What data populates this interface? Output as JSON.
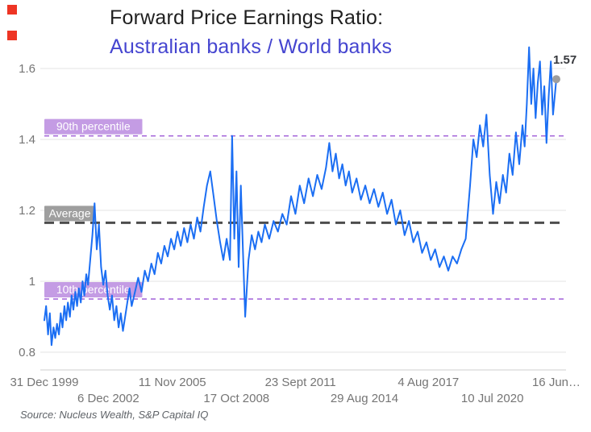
{
  "header": {
    "title": "Forward Price Earnings Ratio:",
    "subtitle": "Australian banks / World banks"
  },
  "source": "Source: Nucleus Wealth, S&P Capital IQ",
  "colors": {
    "line": "#1b6ef3",
    "subtitle": "#4545d0",
    "percentile_bg": "#c49ce4",
    "percentile_line": "#a160d8",
    "average_bg": "#9e9e9e",
    "average_line": "#4d4d4d",
    "marker": "#ee3524",
    "dot": "#9e9e9e",
    "grid": "#e3e3e3",
    "axis_text": "#757575"
  },
  "annotations": [
    {
      "name": "p90",
      "label": "90th percentile",
      "value": 1.41,
      "bg": "#c49ce4",
      "line_color": "#a160d8",
      "dash": "6,5",
      "line_width": 1.5
    },
    {
      "name": "average",
      "label": "Average",
      "value": 1.165,
      "bg": "#9e9e9e",
      "line_color": "#4d4d4d",
      "dash": "12,7",
      "line_width": 3
    },
    {
      "name": "p10",
      "label": "10th percentile",
      "value": 0.95,
      "bg": "#c49ce4",
      "line_color": "#a160d8",
      "dash": "6,5",
      "line_width": 1.5
    }
  ],
  "end_marker": {
    "x": 2023.45,
    "value": 1.57,
    "label": "1.57"
  },
  "chart_data": {
    "type": "line",
    "title": "Forward Price Earnings Ratio: Australian banks / World banks",
    "xlabel": "",
    "ylabel": "",
    "xlim": [
      2000,
      2023.45
    ],
    "ylim": [
      0.8,
      1.6
    ],
    "grid": "horizontal",
    "legend": "none",
    "y_ticks": [
      {
        "label": "0.8",
        "value": 0.8
      },
      {
        "label": "1",
        "value": 1.0
      },
      {
        "label": "1.2",
        "value": 1.2
      },
      {
        "label": "1.4",
        "value": 1.4
      },
      {
        "label": "1.6",
        "value": 1.6
      }
    ],
    "x_ticks": [
      {
        "label": "31 Dec 1999",
        "x": 2000.0,
        "row": 0
      },
      {
        "label": "6 Dec 2002",
        "x": 2002.93,
        "row": 1
      },
      {
        "label": "11 Nov 2005",
        "x": 2005.86,
        "row": 0
      },
      {
        "label": "17 Oct 2008",
        "x": 2008.8,
        "row": 1
      },
      {
        "label": "23 Sept 2011",
        "x": 2011.73,
        "row": 0
      },
      {
        "label": "29 Aug 2014",
        "x": 2014.66,
        "row": 1
      },
      {
        "label": "4 Aug 2017",
        "x": 2017.59,
        "row": 0
      },
      {
        "label": "10 Jul 2020",
        "x": 2020.52,
        "row": 1
      },
      {
        "label": "16 Jun…",
        "x": 2023.45,
        "row": 0
      }
    ],
    "series": [
      {
        "name": "Australian banks / World banks forward PE ratio",
        "color": "#1b6ef3",
        "points": [
          [
            2000.0,
            0.89
          ],
          [
            2000.08,
            0.93
          ],
          [
            2000.17,
            0.85
          ],
          [
            2000.25,
            0.91
          ],
          [
            2000.33,
            0.82
          ],
          [
            2000.42,
            0.87
          ],
          [
            2000.5,
            0.84
          ],
          [
            2000.58,
            0.88
          ],
          [
            2000.67,
            0.85
          ],
          [
            2000.75,
            0.91
          ],
          [
            2000.83,
            0.87
          ],
          [
            2000.92,
            0.93
          ],
          [
            2001.0,
            0.89
          ],
          [
            2001.08,
            0.94
          ],
          [
            2001.17,
            0.9
          ],
          [
            2001.25,
            0.96
          ],
          [
            2001.33,
            0.92
          ],
          [
            2001.42,
            0.97
          ],
          [
            2001.5,
            0.93
          ],
          [
            2001.58,
            0.98
          ],
          [
            2001.67,
            0.94
          ],
          [
            2001.75,
            1.0
          ],
          [
            2001.83,
            0.96
          ],
          [
            2001.92,
            1.02
          ],
          [
            2002.0,
            0.99
          ],
          [
            2002.1,
            1.06
          ],
          [
            2002.2,
            1.13
          ],
          [
            2002.3,
            1.22
          ],
          [
            2002.4,
            1.09
          ],
          [
            2002.5,
            1.16
          ],
          [
            2002.6,
            1.04
          ],
          [
            2002.7,
            0.99
          ],
          [
            2002.8,
            1.03
          ],
          [
            2002.9,
            0.96
          ],
          [
            2003.0,
            0.92
          ],
          [
            2003.1,
            0.96
          ],
          [
            2003.2,
            0.89
          ],
          [
            2003.3,
            0.93
          ],
          [
            2003.4,
            0.87
          ],
          [
            2003.5,
            0.91
          ],
          [
            2003.6,
            0.86
          ],
          [
            2003.7,
            0.9
          ],
          [
            2003.8,
            0.94
          ],
          [
            2003.9,
            0.98
          ],
          [
            2004.0,
            0.93
          ],
          [
            2004.15,
            0.97
          ],
          [
            2004.3,
            1.01
          ],
          [
            2004.45,
            0.97
          ],
          [
            2004.6,
            1.03
          ],
          [
            2004.75,
            1.0
          ],
          [
            2004.9,
            1.05
          ],
          [
            2005.05,
            1.02
          ],
          [
            2005.2,
            1.08
          ],
          [
            2005.35,
            1.05
          ],
          [
            2005.5,
            1.1
          ],
          [
            2005.65,
            1.07
          ],
          [
            2005.8,
            1.12
          ],
          [
            2005.95,
            1.09
          ],
          [
            2006.1,
            1.14
          ],
          [
            2006.25,
            1.1
          ],
          [
            2006.4,
            1.15
          ],
          [
            2006.55,
            1.11
          ],
          [
            2006.7,
            1.16
          ],
          [
            2006.85,
            1.12
          ],
          [
            2007.0,
            1.18
          ],
          [
            2007.15,
            1.14
          ],
          [
            2007.3,
            1.21
          ],
          [
            2007.45,
            1.27
          ],
          [
            2007.6,
            1.31
          ],
          [
            2007.75,
            1.24
          ],
          [
            2007.9,
            1.17
          ],
          [
            2008.05,
            1.11
          ],
          [
            2008.2,
            1.06
          ],
          [
            2008.35,
            1.12
          ],
          [
            2008.5,
            1.06
          ],
          [
            2008.6,
            1.41
          ],
          [
            2008.7,
            1.12
          ],
          [
            2008.8,
            1.31
          ],
          [
            2008.9,
            1.04
          ],
          [
            2009.0,
            1.27
          ],
          [
            2009.1,
            1.08
          ],
          [
            2009.2,
            0.9
          ],
          [
            2009.35,
            1.06
          ],
          [
            2009.5,
            1.13
          ],
          [
            2009.65,
            1.09
          ],
          [
            2009.8,
            1.14
          ],
          [
            2009.95,
            1.11
          ],
          [
            2010.1,
            1.16
          ],
          [
            2010.3,
            1.12
          ],
          [
            2010.5,
            1.17
          ],
          [
            2010.7,
            1.14
          ],
          [
            2010.9,
            1.19
          ],
          [
            2011.1,
            1.16
          ],
          [
            2011.3,
            1.24
          ],
          [
            2011.5,
            1.19
          ],
          [
            2011.7,
            1.27
          ],
          [
            2011.9,
            1.22
          ],
          [
            2012.1,
            1.29
          ],
          [
            2012.3,
            1.24
          ],
          [
            2012.5,
            1.3
          ],
          [
            2012.7,
            1.26
          ],
          [
            2012.9,
            1.32
          ],
          [
            2013.05,
            1.39
          ],
          [
            2013.2,
            1.31
          ],
          [
            2013.35,
            1.36
          ],
          [
            2013.5,
            1.29
          ],
          [
            2013.65,
            1.33
          ],
          [
            2013.8,
            1.27
          ],
          [
            2013.95,
            1.31
          ],
          [
            2014.1,
            1.25
          ],
          [
            2014.3,
            1.29
          ],
          [
            2014.5,
            1.23
          ],
          [
            2014.7,
            1.27
          ],
          [
            2014.9,
            1.22
          ],
          [
            2015.1,
            1.26
          ],
          [
            2015.3,
            1.21
          ],
          [
            2015.5,
            1.25
          ],
          [
            2015.7,
            1.19
          ],
          [
            2015.9,
            1.23
          ],
          [
            2016.1,
            1.16
          ],
          [
            2016.3,
            1.2
          ],
          [
            2016.5,
            1.13
          ],
          [
            2016.7,
            1.17
          ],
          [
            2016.9,
            1.11
          ],
          [
            2017.1,
            1.14
          ],
          [
            2017.3,
            1.08
          ],
          [
            2017.5,
            1.11
          ],
          [
            2017.7,
            1.06
          ],
          [
            2017.9,
            1.09
          ],
          [
            2018.1,
            1.04
          ],
          [
            2018.3,
            1.07
          ],
          [
            2018.5,
            1.03
          ],
          [
            2018.7,
            1.07
          ],
          [
            2018.9,
            1.05
          ],
          [
            2019.1,
            1.09
          ],
          [
            2019.3,
            1.12
          ],
          [
            2019.5,
            1.27
          ],
          [
            2019.65,
            1.4
          ],
          [
            2019.8,
            1.35
          ],
          [
            2019.95,
            1.44
          ],
          [
            2020.1,
            1.38
          ],
          [
            2020.25,
            1.47
          ],
          [
            2020.4,
            1.3
          ],
          [
            2020.55,
            1.19
          ],
          [
            2020.7,
            1.28
          ],
          [
            2020.85,
            1.22
          ],
          [
            2021.0,
            1.3
          ],
          [
            2021.15,
            1.25
          ],
          [
            2021.3,
            1.36
          ],
          [
            2021.45,
            1.3
          ],
          [
            2021.6,
            1.42
          ],
          [
            2021.75,
            1.33
          ],
          [
            2021.9,
            1.44
          ],
          [
            2022.0,
            1.38
          ],
          [
            2022.1,
            1.5
          ],
          [
            2022.2,
            1.66
          ],
          [
            2022.3,
            1.5
          ],
          [
            2022.4,
            1.6
          ],
          [
            2022.5,
            1.46
          ],
          [
            2022.6,
            1.56
          ],
          [
            2022.7,
            1.62
          ],
          [
            2022.8,
            1.47
          ],
          [
            2022.9,
            1.55
          ],
          [
            2023.0,
            1.39
          ],
          [
            2023.1,
            1.52
          ],
          [
            2023.2,
            1.62
          ],
          [
            2023.3,
            1.47
          ],
          [
            2023.45,
            1.57
          ]
        ]
      }
    ]
  }
}
